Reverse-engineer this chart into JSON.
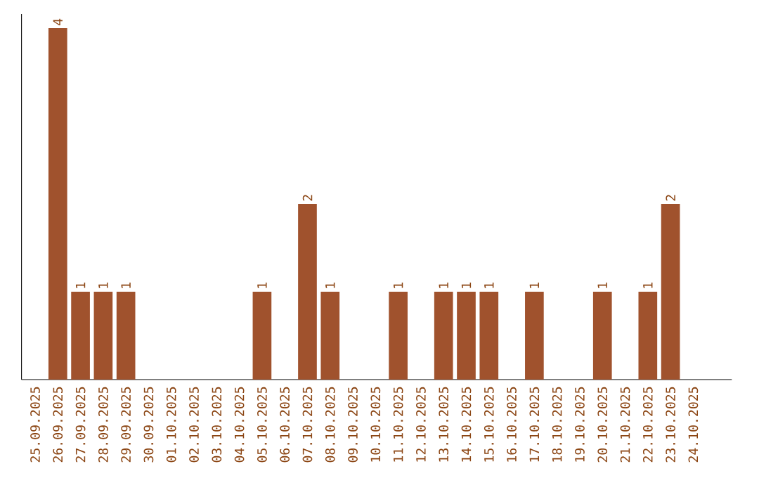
{
  "chart_data": {
    "type": "bar",
    "categories": [
      "25.09.2025",
      "26.09.2025",
      "27.09.2025",
      "28.09.2025",
      "29.09.2025",
      "30.09.2025",
      "01.10.2025",
      "02.10.2025",
      "03.10.2025",
      "04.10.2025",
      "05.10.2025",
      "06.10.2025",
      "07.10.2025",
      "08.10.2025",
      "09.10.2025",
      "10.10.2025",
      "11.10.2025",
      "12.10.2025",
      "13.10.2025",
      "14.10.2025",
      "15.10.2025",
      "16.10.2025",
      "17.10.2025",
      "18.10.2025",
      "19.10.2025",
      "20.10.2025",
      "21.10.2025",
      "22.10.2025",
      "23.10.2025",
      "24.10.2025"
    ],
    "values": [
      0,
      4,
      1,
      1,
      1,
      0,
      0,
      0,
      0,
      0,
      1,
      0,
      2,
      1,
      0,
      0,
      1,
      0,
      1,
      1,
      1,
      0,
      1,
      0,
      0,
      1,
      0,
      1,
      2,
      0
    ],
    "value_labels": [
      null,
      "4",
      "1",
      "1",
      "1",
      null,
      null,
      null,
      null,
      null,
      "1",
      null,
      "2",
      "1",
      null,
      null,
      "1",
      null,
      "1",
      "1",
      "1",
      null,
      "1",
      null,
      null,
      "1",
      null,
      "1",
      "2",
      null
    ],
    "color": "#a0522d",
    "tick_labels": "x"
  }
}
